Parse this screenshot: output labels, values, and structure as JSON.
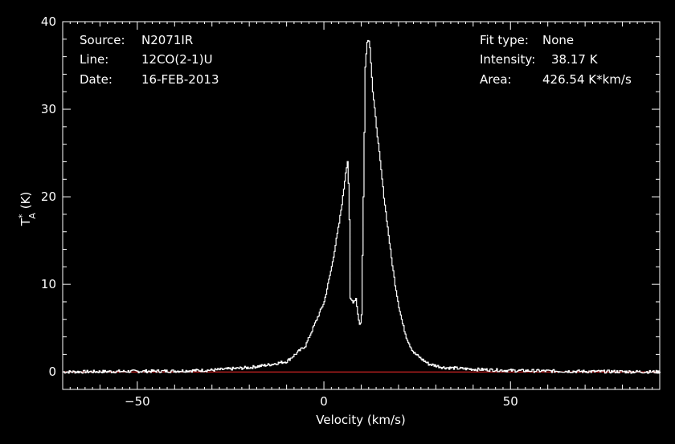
{
  "info": {
    "source_label": "Source:",
    "source_value": "N2071IR",
    "line_label": "Line:",
    "line_value": "12CO(2-1)U",
    "date_label": "Date:",
    "date_value": "16-FEB-2013",
    "fit_label": "Fit type:",
    "fit_value": "None",
    "intensity_label": "Intensity:",
    "intensity_value": "38.17 K",
    "area_label": "Area:",
    "area_value": "426.54 K*km/s"
  },
  "chart_data": {
    "type": "line",
    "xlabel": "Velocity (km/s)",
    "ylabel_main": "T",
    "ylabel_sup": "*",
    "ylabel_sub": "A",
    "ylabel_unit": " (K)",
    "xlim": [
      -70,
      90
    ],
    "ylim": [
      -2,
      40
    ],
    "x_ticks": [
      -50,
      0,
      50
    ],
    "y_ticks": [
      0,
      10,
      20,
      30,
      40
    ],
    "baseline_value": 0,
    "colors": {
      "background": "#000000",
      "axes": "#ffffff",
      "spectrum": "#ffffff",
      "baseline": "#ff2a2a"
    },
    "series": [
      {
        "x": [
          -70,
          -40,
          -30,
          -20,
          -15,
          -10,
          -5,
          -2,
          0,
          2,
          4,
          5,
          5.8,
          6.3,
          6.7,
          7.0,
          7.8,
          8.5,
          9.2,
          9.6,
          10.0,
          10.5,
          11.0,
          11.6,
          12.2,
          13,
          14,
          15,
          16,
          17,
          18,
          19,
          20,
          21,
          22,
          23,
          24,
          26,
          28,
          32,
          40,
          50,
          60,
          70,
          90
        ],
        "y": [
          0,
          0.1,
          0.2,
          0.5,
          0.8,
          1.2,
          3.0,
          6.0,
          8.0,
          12.0,
          17.0,
          20.0,
          23.0,
          24.2,
          19.0,
          8.3,
          8.0,
          8.4,
          6.0,
          5.2,
          6.5,
          20.0,
          35.0,
          38.2,
          37.5,
          32.0,
          28.0,
          24.0,
          20.0,
          16.5,
          13.0,
          10.0,
          7.5,
          5.5,
          4.0,
          3.0,
          2.2,
          1.5,
          0.9,
          0.5,
          0.3,
          0.15,
          0.1,
          0.05,
          0
        ]
      }
    ]
  }
}
